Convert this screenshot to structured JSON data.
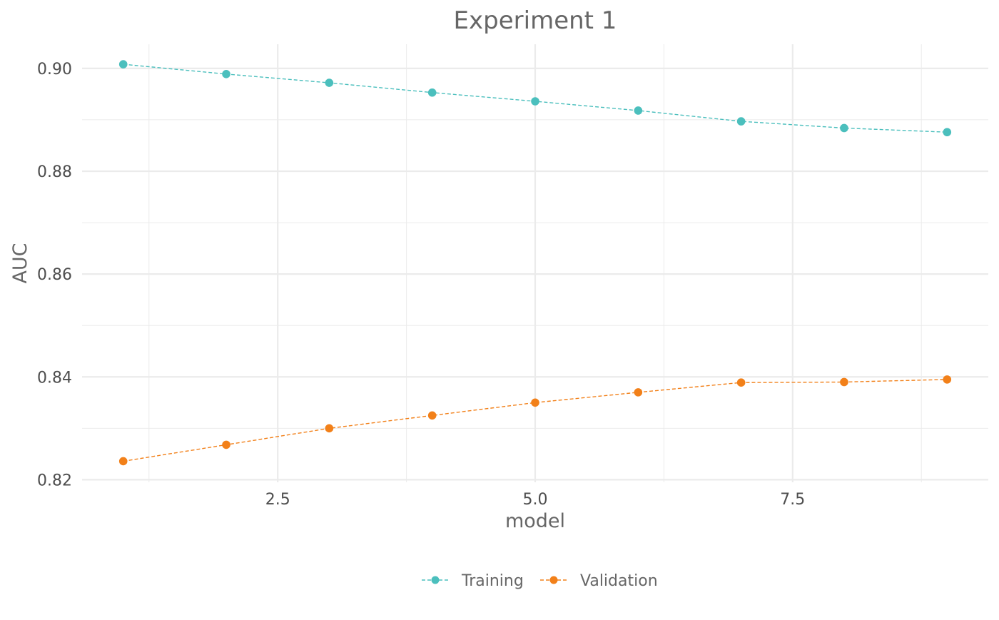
{
  "chart_data": {
    "type": "line",
    "title": "Experiment 1",
    "xlabel": "model",
    "ylabel": "AUC",
    "xlim": [
      0.6,
      9.4
    ],
    "ylim": [
      0.8195,
      0.9047
    ],
    "x_ticks": [
      2.5,
      5.0,
      7.5
    ],
    "x_tick_labels": [
      "2.5",
      "5.0",
      "7.5"
    ],
    "x_minor_ticks": [
      1.25,
      3.75,
      6.25,
      8.75
    ],
    "y_ticks": [
      0.82,
      0.84,
      0.86,
      0.88,
      0.9
    ],
    "y_tick_labels": [
      "0.82",
      "0.84",
      "0.86",
      "0.88",
      "0.90"
    ],
    "y_minor_ticks": [
      0.83,
      0.85,
      0.87,
      0.89
    ],
    "grid": true,
    "legend_position": "bottom",
    "series": [
      {
        "name": "Training",
        "color": "#4BBFBD",
        "line_style": "dashed",
        "marker": "circle",
        "x": [
          1,
          2,
          3,
          4,
          5,
          6,
          7,
          8,
          9
        ],
        "y": [
          0.9008,
          0.8989,
          0.8972,
          0.8953,
          0.8936,
          0.8918,
          0.8897,
          0.8884,
          0.8876
        ]
      },
      {
        "name": "Validation",
        "color": "#F28019",
        "line_style": "dashed",
        "marker": "circle",
        "x": [
          1,
          2,
          3,
          4,
          5,
          6,
          7,
          8,
          9
        ],
        "y": [
          0.8236,
          0.8268,
          0.83,
          0.8325,
          0.835,
          0.837,
          0.8389,
          0.839,
          0.8395
        ]
      }
    ]
  }
}
